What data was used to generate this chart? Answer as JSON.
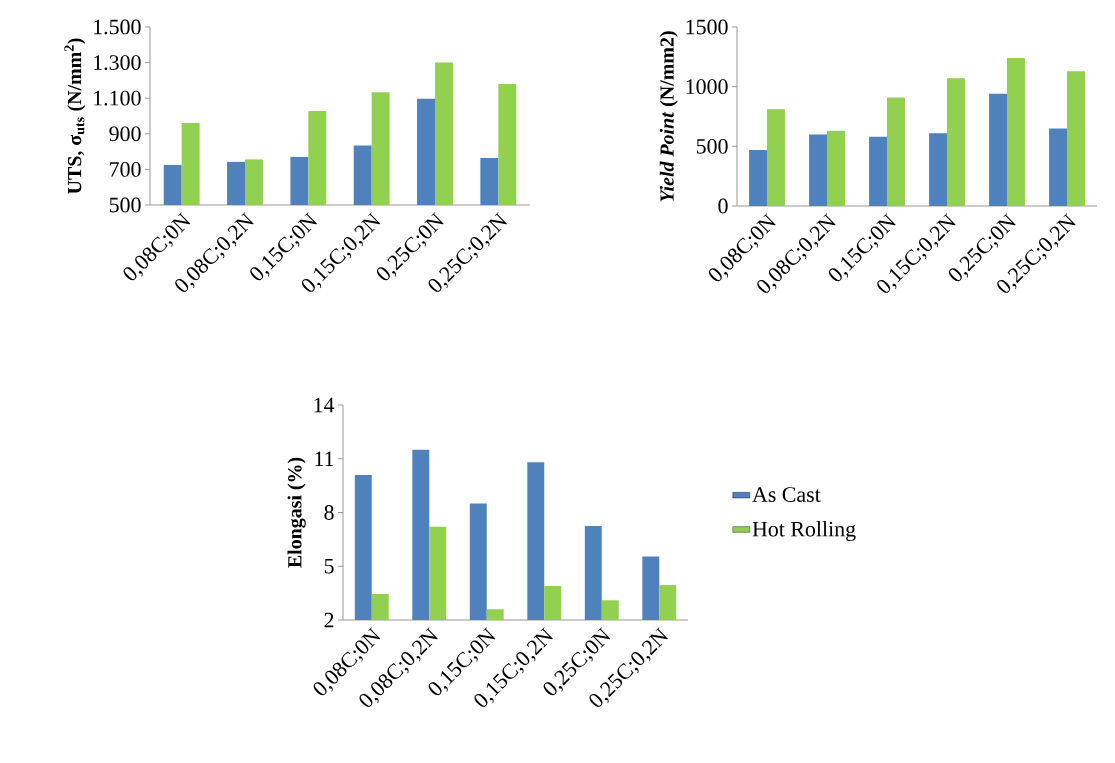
{
  "chart_data": [
    {
      "type": "bar",
      "ylabel": "UTS, σ$_{uts}$ (N/mm$^{2}$)",
      "categories": [
        "0,08C;0N",
        "0,08C;0,2N",
        "0,15C;0N",
        "0,15C;0,2N",
        "0,25C;0N",
        "0,25C;0,2N"
      ],
      "series": [
        {
          "color": "#4f81bd",
          "values": [
            725,
            742,
            770,
            834,
            1097,
            764
          ]
        },
        {
          "color": "#92d050",
          "values": [
            960,
            756,
            1028,
            1133,
            1301,
            1180
          ]
        }
      ],
      "ylim": [
        500,
        1500
      ],
      "yticks": [
        {
          "value": 500,
          "label": "500"
        },
        {
          "value": 700,
          "label": "700"
        },
        {
          "value": 900,
          "label": "900"
        },
        {
          "value": 1100,
          "label": "1.100"
        },
        {
          "value": 1300,
          "label": "1.300"
        },
        {
          "value": 1500,
          "label": "1.500"
        }
      ]
    },
    {
      "type": "bar",
      "ylabel": "*Yield Point* (N/mm2)",
      "categories": [
        "0,08C;0N",
        "0,08C;0,2N",
        "0,15C;0N",
        "0,15C;0,2N",
        "0,25C;0N",
        "0,25C;0,2N"
      ],
      "series": [
        {
          "color": "#4f81bd",
          "values": [
            470,
            600,
            580,
            610,
            940,
            650
          ]
        },
        {
          "color": "#92d050",
          "values": [
            810,
            630,
            910,
            1070,
            1240,
            1130
          ]
        }
      ],
      "ylim": [
        0,
        1500
      ],
      "yticks": [
        0,
        500,
        1000,
        1500
      ]
    },
    {
      "type": "bar",
      "ylabel": "Elongasi (%)",
      "categories": [
        "0,08C;0N",
        "0,08C;0,2N",
        "0,15C;0N",
        "0,15C;0,2N",
        "0,25C;0N",
        "0,25C;0,2N"
      ],
      "series": [
        {
          "name": "As Cast",
          "color": "#4f81bd",
          "values": [
            10.1,
            11.5,
            8.5,
            10.8,
            7.25,
            5.55
          ]
        },
        {
          "name": "Hot Rolling",
          "color": "#92d050",
          "values": [
            3.45,
            7.2,
            2.6,
            3.9,
            3.1,
            3.95
          ]
        }
      ],
      "ylim": [
        2,
        14
      ],
      "yticks": [
        2,
        5,
        8,
        11,
        14
      ],
      "legend": "right"
    }
  ]
}
